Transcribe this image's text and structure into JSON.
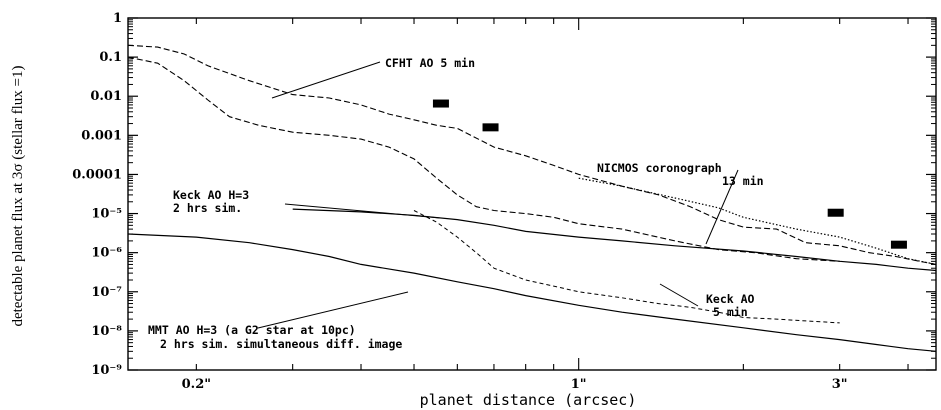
{
  "chart_data": {
    "type": "line",
    "title": "",
    "xlabel": "planet distance (arcsec)",
    "ylabel": "detectable planet flux at 3σ (stellar flux =1)",
    "x_scale": "log",
    "y_scale": "log",
    "xlim": [
      0.15,
      4.5
    ],
    "ylim": [
      1e-09,
      1
    ],
    "x_ticks": [
      {
        "value": 0.2,
        "label": "0.2\""
      },
      {
        "value": 1,
        "label": "1\""
      },
      {
        "value": 3,
        "label": "3\""
      }
    ],
    "y_ticks": [
      {
        "value": 1,
        "label": "1"
      },
      {
        "value": 0.1,
        "label": "0.1"
      },
      {
        "value": 0.01,
        "label": "0.01"
      },
      {
        "value": 0.001,
        "label": "0.001"
      },
      {
        "value": 0.0001,
        "label": "0.0001"
      },
      {
        "value": 1e-05,
        "label": "10⁻⁵"
      },
      {
        "value": 1e-06,
        "label": "10⁻⁶"
      },
      {
        "value": 1e-07,
        "label": "10⁻⁷"
      },
      {
        "value": 1e-08,
        "label": "10⁻⁸"
      },
      {
        "value": 1e-09,
        "label": "10⁻⁹"
      }
    ],
    "series": [
      {
        "name": "CFHT AO 5 min",
        "style": "dashed",
        "x": [
          0.15,
          0.17,
          0.19,
          0.21,
          0.25,
          0.3,
          0.35,
          0.4,
          0.45,
          0.5,
          0.55,
          0.6,
          0.7,
          0.8,
          0.9,
          1.0,
          1.2,
          1.4,
          1.6,
          1.8,
          2.0,
          2.3,
          2.6,
          3.0,
          3.4,
          3.8,
          4.2,
          4.5
        ],
        "y": [
          0.2,
          0.18,
          0.12,
          0.06,
          0.025,
          0.011,
          0.009,
          0.006,
          0.0035,
          0.0025,
          0.0018,
          0.0015,
          0.0005,
          0.0003,
          0.00017,
          0.0001,
          5e-05,
          3e-05,
          1.5e-05,
          7e-06,
          4.5e-06,
          4e-06,
          1.8e-06,
          1.5e-06,
          1e-06,
          8e-07,
          6e-07,
          5e-07
        ]
      },
      {
        "name": "Keck AO 5 min",
        "style": "dashed",
        "x": [
          0.15,
          0.17,
          0.19,
          0.21,
          0.23,
          0.26,
          0.3,
          0.35,
          0.4,
          0.45,
          0.5,
          0.55,
          0.6,
          0.65,
          0.7,
          0.8,
          0.9,
          1.0,
          1.2,
          1.5,
          1.8,
          2.1,
          2.5,
          3.0
        ],
        "y": [
          0.1,
          0.07,
          0.025,
          0.008,
          0.003,
          0.0018,
          0.0012,
          0.001,
          0.0008,
          0.0005,
          0.00025,
          8e-05,
          3e-05,
          1.5e-05,
          1.2e-05,
          1e-05,
          8e-06,
          5.5e-06,
          4e-06,
          2e-06,
          1.2e-06,
          1e-06,
          7e-07,
          6e-07
        ]
      },
      {
        "name": "Keck AO H=3 2 hrs sim.",
        "style": "dashed-thin",
        "x": [
          0.5,
          0.55,
          0.6,
          0.65,
          0.7,
          0.8,
          0.9,
          1.0,
          1.2,
          1.4,
          1.6,
          1.8,
          2.0,
          2.3,
          2.6,
          3.0
        ],
        "y": [
          1.2e-05,
          6e-06,
          2.5e-06,
          1e-06,
          4e-07,
          2e-07,
          1.4e-07,
          1e-07,
          7e-08,
          5e-08,
          4e-08,
          3e-08,
          2.2e-08,
          2e-08,
          1.8e-08,
          1.6e-08
        ]
      },
      {
        "name": "Keck AO H=3 simulation",
        "style": "solid",
        "x": [
          0.3,
          0.4,
          0.5,
          0.6,
          0.7,
          0.8,
          1.0,
          1.2,
          1.5,
          2.0,
          2.5,
          3.0,
          3.5,
          4.0,
          4.5
        ],
        "y": [
          1.3e-05,
          1.1e-05,
          9e-06,
          7e-06,
          5e-06,
          3.5e-06,
          2.5e-06,
          2e-06,
          1.5e-06,
          1.1e-06,
          8e-07,
          6e-07,
          5e-07,
          4e-07,
          3.5e-07
        ]
      },
      {
        "name": "MMT AO H=3 (a G2 star at 10pc) 2 hrs sim. simultaneous diff. image",
        "style": "solid",
        "x": [
          0.15,
          0.2,
          0.25,
          0.3,
          0.35,
          0.4,
          0.5,
          0.6,
          0.7,
          0.8,
          1.0,
          1.2,
          1.5,
          2.0,
          2.5,
          3.0,
          3.5,
          4.0,
          4.5
        ],
        "y": [
          3e-06,
          2.5e-06,
          1.8e-06,
          1.2e-06,
          8e-07,
          5e-07,
          3e-07,
          1.8e-07,
          1.2e-07,
          8e-08,
          4.5e-08,
          3e-08,
          2e-08,
          1.2e-08,
          8e-09,
          6e-09,
          4.5e-09,
          3.5e-09,
          3e-09
        ]
      },
      {
        "name": "NICMOS coronograph 13 min",
        "style": "dotted",
        "x": [
          1.0,
          1.2,
          1.5,
          1.8,
          2.0,
          2.5,
          3.0,
          3.5,
          4.0,
          4.5
        ],
        "y": [
          8e-05,
          5e-05,
          2.5e-05,
          1.4e-05,
          8e-06,
          4e-06,
          2.5e-06,
          1.3e-06,
          7e-07,
          5e-07
        ]
      }
    ],
    "markers": [
      {
        "x": 0.56,
        "y": 0.0065
      },
      {
        "x": 0.69,
        "y": 0.0016
      },
      {
        "x": 2.95,
        "y": 1.05e-05
      },
      {
        "x": 3.85,
        "y": 1.6e-06
      }
    ],
    "annotations": [
      {
        "id": "cfht",
        "text": "CFHT AO 5 min"
      },
      {
        "id": "nicmos1",
        "text": "NICMOS coronograph"
      },
      {
        "id": "nicmos2",
        "text": "13 min"
      },
      {
        "id": "keckh1",
        "text": "Keck AO H=3"
      },
      {
        "id": "keckh2",
        "text": "2 hrs sim."
      },
      {
        "id": "keck1",
        "text": "Keck AO"
      },
      {
        "id": "keck2",
        "text": "5 min"
      },
      {
        "id": "mmt1",
        "text": "MMT AO H=3 (a G2 star at 10pc)"
      },
      {
        "id": "mmt2",
        "text": "2 hrs sim. simultaneous diff. image"
      }
    ]
  }
}
